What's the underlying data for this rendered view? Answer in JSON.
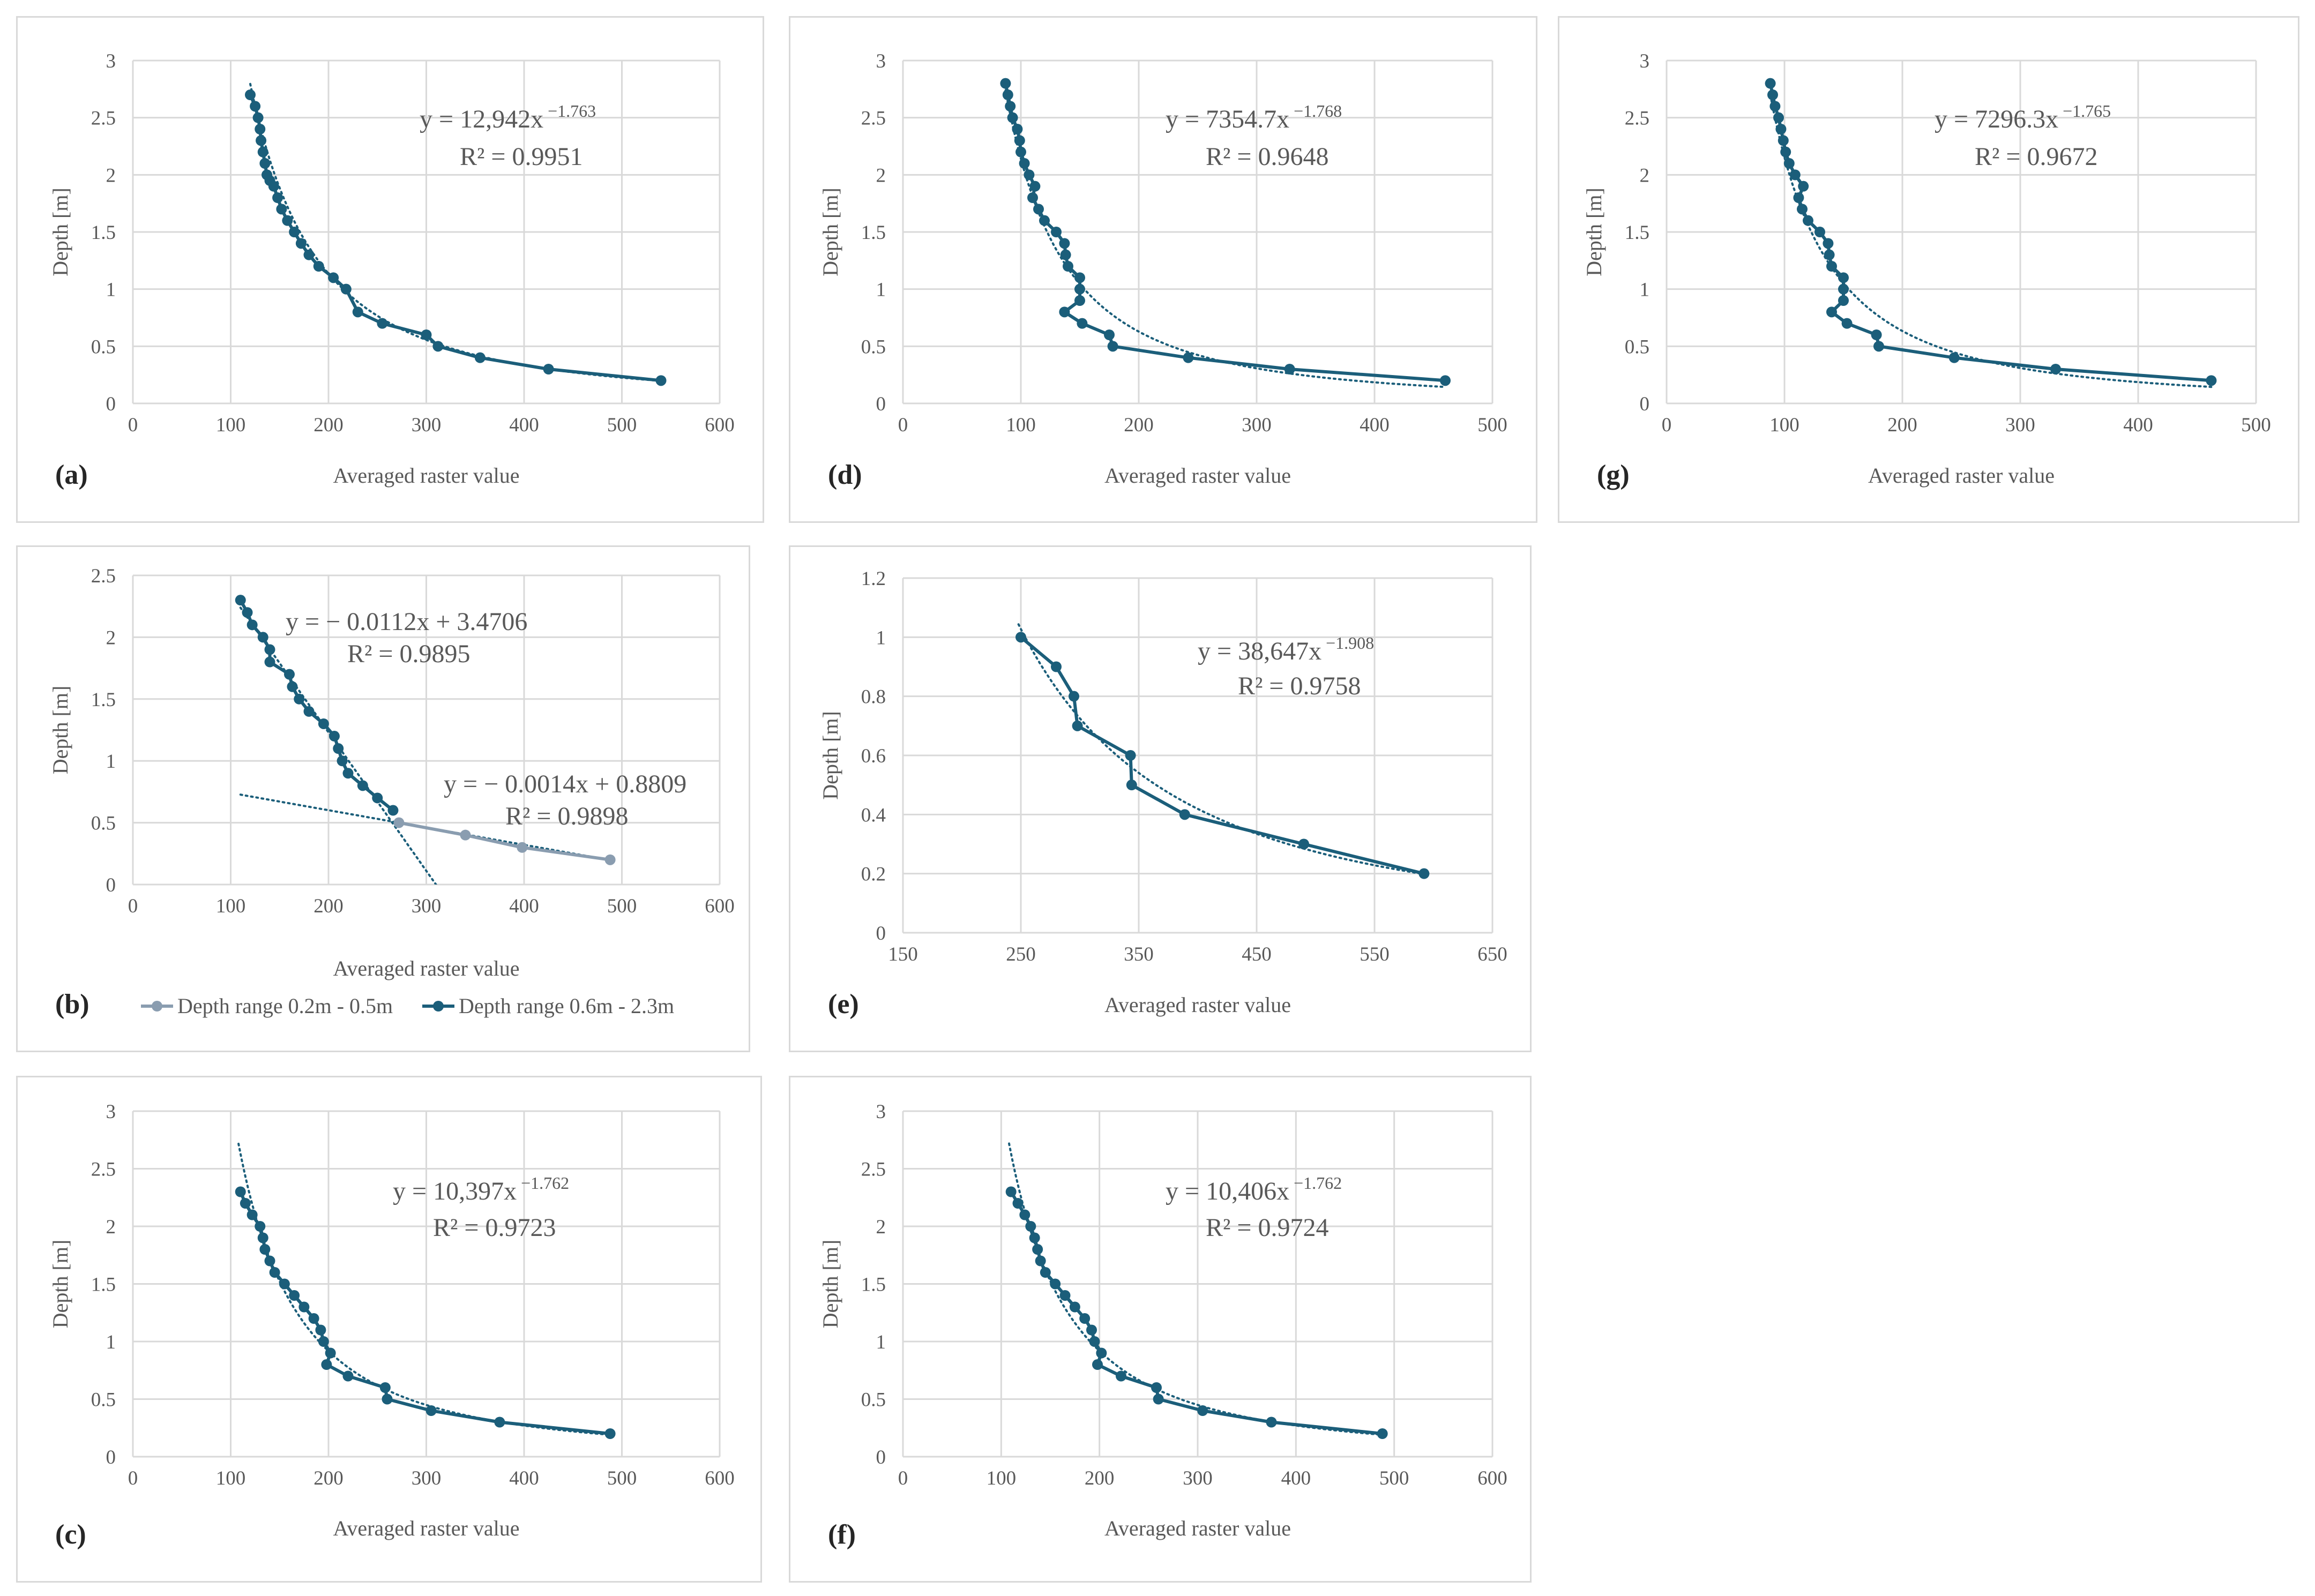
{
  "colors": {
    "main": "#1b5e7a",
    "secondary": "#8a9db0",
    "grid": "#d9d9d9",
    "text": "#595959"
  },
  "chart_data": [
    {
      "id": "a",
      "panel_label": "(a)",
      "type": "line",
      "xlabel": "Averaged raster value",
      "ylabel": "Depth [m]",
      "xlim": [
        0,
        600
      ],
      "ylim": [
        0,
        3
      ],
      "xticks": [
        0,
        100,
        200,
        300,
        400,
        500,
        600
      ],
      "yticks": [
        0,
        0.5,
        1,
        1.5,
        2,
        2.5,
        3
      ],
      "ytick_labels": [
        "0",
        "0.5",
        "1",
        "1.5",
        "2",
        "2.5",
        "3"
      ],
      "series": [
        {
          "x": [
            120,
            125,
            128,
            130,
            131,
            133,
            135,
            137,
            140,
            144,
            148,
            152,
            158,
            165,
            172,
            180,
            190,
            205,
            218,
            230,
            255,
            300,
            312,
            355,
            425,
            540
          ],
          "y": [
            2.7,
            2.6,
            2.5,
            2.4,
            2.3,
            2.2,
            2.1,
            2.0,
            1.95,
            1.9,
            1.8,
            1.7,
            1.6,
            1.5,
            1.4,
            1.3,
            1.2,
            1.1,
            1.0,
            0.8,
            0.7,
            0.6,
            0.5,
            0.4,
            0.3,
            0.2
          ]
        }
      ],
      "trendline": {
        "kind": "power",
        "a": 12942,
        "b": -1.763,
        "x_from": 120,
        "x_to": 540
      },
      "equation": {
        "lead": "y = 12,942x",
        "exp": " −1.763",
        "r2": "R² = 0.9951"
      }
    },
    {
      "id": "d",
      "panel_label": "(d)",
      "type": "line",
      "xlabel": "Averaged raster value",
      "ylabel": "Depth [m]",
      "xlim": [
        0,
        500
      ],
      "ylim": [
        0,
        3
      ],
      "xticks": [
        0,
        100,
        200,
        300,
        400,
        500
      ],
      "yticks": [
        0,
        0.5,
        1,
        1.5,
        2,
        2.5,
        3
      ],
      "ytick_labels": [
        "0",
        "0.5",
        "1",
        "1.5",
        "2",
        "2.5",
        "3"
      ],
      "series": [
        {
          "x": [
            87,
            89,
            91,
            93,
            97,
            99,
            100,
            103,
            107,
            112,
            110,
            115,
            120,
            130,
            137,
            138,
            140,
            150,
            150,
            150,
            137,
            152,
            175,
            178,
            242,
            328,
            460
          ],
          "y": [
            2.8,
            2.7,
            2.6,
            2.5,
            2.4,
            2.3,
            2.2,
            2.1,
            2.0,
            1.9,
            1.8,
            1.7,
            1.6,
            1.5,
            1.4,
            1.3,
            1.2,
            1.1,
            1.0,
            0.9,
            0.8,
            0.7,
            0.6,
            0.5,
            0.4,
            0.3,
            0.2
          ]
        }
      ],
      "trendline": {
        "kind": "power",
        "a": 7354.7,
        "b": -1.768,
        "x_from": 87,
        "x_to": 460
      },
      "equation": {
        "lead": "y = 7354.7x",
        "exp": " −1.768",
        "r2": "R² = 0.9648"
      }
    },
    {
      "id": "g",
      "panel_label": "(g)",
      "type": "line",
      "xlabel": "Averaged raster value",
      "ylabel": "Depth [m]",
      "xlim": [
        0,
        500
      ],
      "ylim": [
        0,
        3
      ],
      "xticks": [
        0,
        100,
        200,
        300,
        400,
        500
      ],
      "yticks": [
        0,
        0.5,
        1,
        1.5,
        2,
        2.5,
        3
      ],
      "ytick_labels": [
        "0",
        "0.5",
        "1",
        "1.5",
        "2",
        "2.5",
        "3"
      ],
      "series": [
        {
          "x": [
            88,
            90,
            92,
            95,
            97,
            99,
            101,
            104,
            109,
            116,
            112,
            115,
            120,
            130,
            137,
            138,
            140,
            150,
            150,
            150,
            140,
            153,
            178,
            180,
            244,
            330,
            462
          ],
          "y": [
            2.8,
            2.7,
            2.6,
            2.5,
            2.4,
            2.3,
            2.2,
            2.1,
            2.0,
            1.9,
            1.8,
            1.7,
            1.6,
            1.5,
            1.4,
            1.3,
            1.2,
            1.1,
            1.0,
            0.9,
            0.8,
            0.7,
            0.6,
            0.5,
            0.4,
            0.3,
            0.2
          ]
        }
      ],
      "trendline": {
        "kind": "power",
        "a": 7296.3,
        "b": -1.765,
        "x_from": 88,
        "x_to": 462
      },
      "equation": {
        "lead": "y = 7296.3x",
        "exp": " −1.765",
        "r2": "R² = 0.9672"
      }
    },
    {
      "id": "b",
      "panel_label": "(b)",
      "type": "line",
      "xlabel": "Averaged raster value",
      "ylabel": "Depth [m]",
      "xlim": [
        0,
        600
      ],
      "ylim": [
        0,
        2.5
      ],
      "xticks": [
        0,
        100,
        200,
        300,
        400,
        500,
        600
      ],
      "yticks": [
        0,
        0.5,
        1,
        1.5,
        2,
        2.5
      ],
      "ytick_labels": [
        "0",
        "0.5",
        "1",
        "1.5",
        "2",
        "2.5"
      ],
      "series": [
        {
          "name": "Depth range 0.2m - 0.5m",
          "color_key": "secondary",
          "x": [
            272,
            340,
            398,
            488
          ],
          "y": [
            0.5,
            0.4,
            0.3,
            0.2
          ]
        },
        {
          "name": "Depth range 0.6m - 2.3m",
          "color_key": "main",
          "x": [
            110,
            117,
            122,
            133,
            140,
            140,
            160,
            163,
            170,
            180,
            195,
            206,
            210,
            214,
            220,
            235,
            250,
            266
          ],
          "y": [
            2.3,
            2.2,
            2.1,
            2.0,
            1.9,
            1.8,
            1.7,
            1.6,
            1.5,
            1.4,
            1.3,
            1.2,
            1.1,
            1.0,
            0.9,
            0.8,
            0.7,
            0.6
          ]
        }
      ],
      "trendlines": [
        {
          "kind": "linear",
          "m": -0.0112,
          "c": 3.4706,
          "x_from": 110,
          "x_to": 310
        },
        {
          "kind": "linear",
          "m": -0.0014,
          "c": 0.8809,
          "x_from": 110,
          "x_to": 488
        }
      ],
      "equations": [
        {
          "lead": "y = − 0.0112x + 3.4706",
          "r2": "R² = 0.9895"
        },
        {
          "lead": "y = − 0.0014x + 0.8809",
          "r2": "R² = 0.9898"
        }
      ],
      "legend": "bottom"
    },
    {
      "id": "e",
      "panel_label": "(e)",
      "type": "line",
      "xlabel": "Averaged raster value",
      "ylabel": "Depth [m]",
      "xlim": [
        150,
        650
      ],
      "ylim": [
        0,
        1.2
      ],
      "xticks": [
        150,
        250,
        350,
        450,
        550,
        650
      ],
      "yticks": [
        0,
        0.2,
        0.4,
        0.6,
        0.8,
        1,
        1.2
      ],
      "ytick_labels": [
        "0",
        "0.2",
        "0.4",
        "0.6",
        "0.8",
        "1",
        "1.2"
      ],
      "series": [
        {
          "x": [
            250,
            280,
            295,
            298,
            343,
            344,
            389,
            490,
            592
          ],
          "y": [
            1.0,
            0.9,
            0.8,
            0.7,
            0.6,
            0.5,
            0.4,
            0.3,
            0.2
          ]
        }
      ],
      "trendline": {
        "kind": "power",
        "a": 38647,
        "b": -1.908,
        "x_from": 248,
        "x_to": 592
      },
      "equation": {
        "lead": "y = 38,647x",
        "exp": " −1.908",
        "r2": "R² = 0.9758"
      }
    },
    {
      "id": "c",
      "panel_label": "(c)",
      "type": "line",
      "xlabel": "Averaged raster value",
      "ylabel": "Depth [m]",
      "xlim": [
        0,
        600
      ],
      "ylim": [
        0,
        3
      ],
      "xticks": [
        0,
        100,
        200,
        300,
        400,
        500,
        600
      ],
      "yticks": [
        0,
        0.5,
        1,
        1.5,
        2,
        2.5,
        3
      ],
      "ytick_labels": [
        "0",
        "0.5",
        "1",
        "1.5",
        "2",
        "2.5",
        "3"
      ],
      "series": [
        {
          "x": [
            110,
            115,
            122,
            130,
            133,
            135,
            140,
            145,
            155,
            165,
            175,
            185,
            192,
            195,
            202,
            198,
            220,
            258,
            260,
            305,
            375,
            488
          ],
          "y": [
            2.3,
            2.2,
            2.1,
            2.0,
            1.9,
            1.8,
            1.7,
            1.6,
            1.5,
            1.4,
            1.3,
            1.2,
            1.1,
            1.0,
            0.9,
            0.8,
            0.7,
            0.6,
            0.5,
            0.4,
            0.3,
            0.2
          ]
        }
      ],
      "trendline": {
        "kind": "power",
        "a": 10397,
        "b": -1.762,
        "x_from": 108,
        "x_to": 488
      },
      "equation": {
        "lead": "y = 10,397x",
        "exp": " −1.762",
        "r2": "R² = 0.9723"
      }
    },
    {
      "id": "f",
      "panel_label": "(f)",
      "type": "line",
      "xlabel": "Averaged raster value",
      "ylabel": "Depth [m]",
      "xlim": [
        0,
        600
      ],
      "ylim": [
        0,
        3
      ],
      "xticks": [
        0,
        100,
        200,
        300,
        400,
        500,
        600
      ],
      "yticks": [
        0,
        0.5,
        1,
        1.5,
        2,
        2.5,
        3
      ],
      "ytick_labels": [
        "0",
        "0.5",
        "1",
        "1.5",
        "2",
        "2.5",
        "3"
      ],
      "series": [
        {
          "x": [
            110,
            117,
            124,
            130,
            134,
            137,
            140,
            145,
            155,
            165,
            175,
            185,
            192,
            195,
            202,
            198,
            222,
            258,
            260,
            305,
            375,
            488
          ],
          "y": [
            2.3,
            2.2,
            2.1,
            2.0,
            1.9,
            1.8,
            1.7,
            1.6,
            1.5,
            1.4,
            1.3,
            1.2,
            1.1,
            1.0,
            0.9,
            0.8,
            0.7,
            0.6,
            0.5,
            0.4,
            0.3,
            0.2
          ]
        }
      ],
      "trendline": {
        "kind": "power",
        "a": 10406,
        "b": -1.762,
        "x_from": 108,
        "x_to": 488
      },
      "equation": {
        "lead": "y = 10,406x",
        "exp": " −1.762",
        "r2": "R² = 0.9724"
      }
    }
  ]
}
